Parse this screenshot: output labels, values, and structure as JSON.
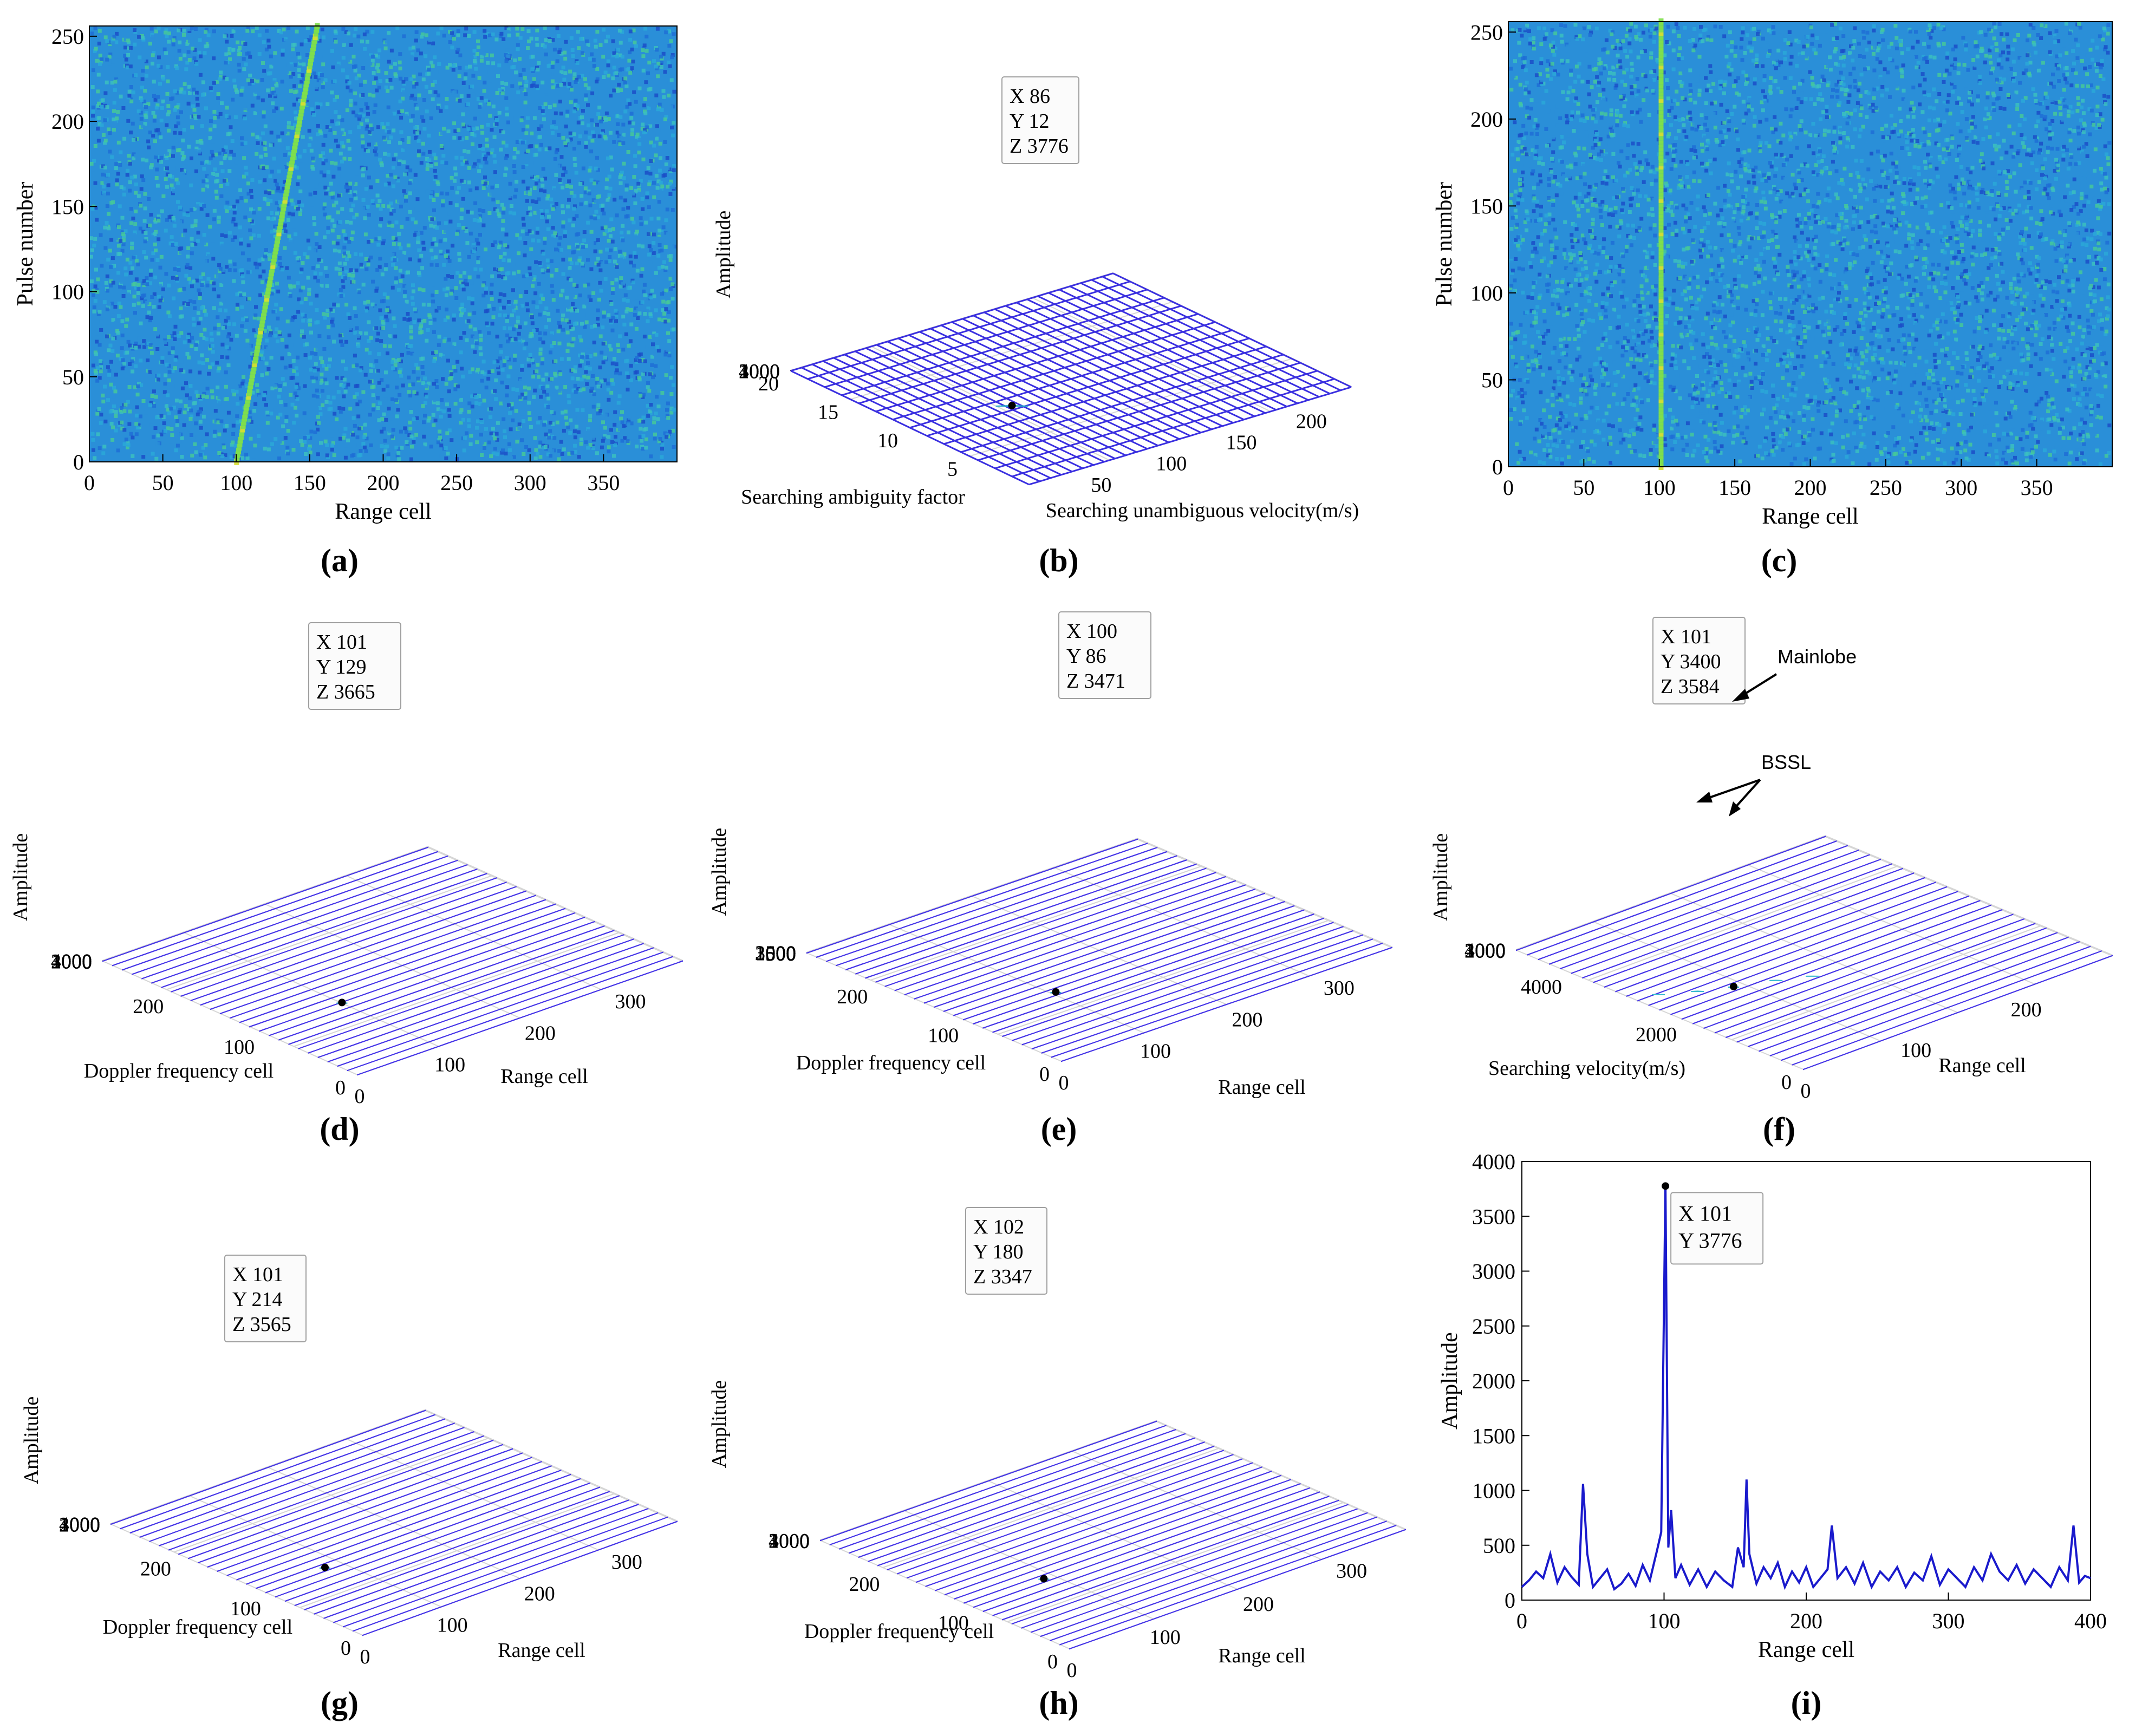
{
  "chart_data": [
    {
      "id": "a",
      "type": "heatmap",
      "caption": "(a)",
      "xlabel": "Range cell",
      "ylabel": "Pulse number",
      "xlim": [
        0,
        400
      ],
      "ylim": [
        0,
        256
      ],
      "xticks": [
        0,
        50,
        100,
        150,
        200,
        250,
        300,
        350
      ],
      "yticks": [
        0,
        50,
        100,
        150,
        200,
        250
      ],
      "target_track": {
        "x_start": 100,
        "x_end": 155,
        "y_start": 0,
        "y_end": 256
      },
      "colors": {
        "bg": "#2a8fd8",
        "track": "#7fe04a"
      }
    },
    {
      "id": "b",
      "type": "surface3d",
      "caption": "(b)",
      "xlabel": "Searching unambiguous velocity(m/s)",
      "ylabel": "Searching ambiguity factor",
      "zlabel": "Amplitude",
      "xticks": [
        50,
        100,
        150,
        200
      ],
      "yticks": [
        5,
        10,
        15,
        20
      ],
      "zticks": [
        1000,
        2000,
        3000,
        4000
      ],
      "zlim": [
        0,
        4000
      ],
      "noise_level": 700,
      "datatip": {
        "x": 86,
        "y": 12,
        "z": 3776,
        "lines": [
          "X 86",
          "Y 12",
          "Z 3776"
        ]
      }
    },
    {
      "id": "c",
      "type": "heatmap",
      "caption": "(c)",
      "xlabel": "Range cell",
      "ylabel": "Pulse number",
      "xlim": [
        0,
        400
      ],
      "ylim": [
        0,
        256
      ],
      "xticks": [
        0,
        50,
        100,
        150,
        200,
        250,
        300,
        350
      ],
      "yticks": [
        0,
        50,
        100,
        150,
        200,
        250
      ],
      "target_track": {
        "x_start": 101,
        "x_end": 101,
        "y_start": 0,
        "y_end": 256
      },
      "colors": {
        "bg": "#2a8fd8",
        "track": "#7fe04a"
      }
    },
    {
      "id": "d",
      "type": "surface3d",
      "caption": "(d)",
      "xlabel": "Range cell",
      "ylabel": "Doppler frequency cell",
      "zlabel": "Amplitude",
      "xticks": [
        0,
        100,
        200,
        300
      ],
      "yticks": [
        0,
        100,
        200
      ],
      "zticks": [
        0,
        1000,
        2000,
        3000,
        4000
      ],
      "zlim": [
        0,
        4000
      ],
      "noise_level": 600,
      "datatip": {
        "x": 101,
        "y": 129,
        "z": 3665,
        "lines": [
          "X 101",
          "Y 129",
          "Z 3665"
        ]
      }
    },
    {
      "id": "e",
      "type": "surface3d",
      "caption": "(e)",
      "xlabel": "Range cell",
      "ylabel": "Doppler frequency cell",
      "zlabel": "Amplitude",
      "xticks": [
        0,
        100,
        200,
        300
      ],
      "yticks": [
        0,
        100,
        200
      ],
      "zticks": [
        0,
        500,
        1000,
        1500,
        2000,
        2500,
        3000,
        3500
      ],
      "zlim": [
        0,
        3500
      ],
      "noise_level": 600,
      "datatip": {
        "x": 100,
        "y": 86,
        "z": 3471,
        "lines": [
          "X 100",
          "Y 86",
          "Z 3471"
        ]
      }
    },
    {
      "id": "f",
      "type": "surface3d",
      "caption": "(f)",
      "xlabel": "Range cell",
      "ylabel": "Searching velocity(m/s)",
      "zlabel": "Amplitude",
      "xticks": [
        0,
        100,
        200
      ],
      "yticks": [
        0,
        2000,
        4000
      ],
      "zticks": [
        0,
        1000,
        2000,
        3000,
        4000
      ],
      "zlim": [
        0,
        4000
      ],
      "noise_level": 600,
      "datatip": {
        "x": 101,
        "y": 3400,
        "z": 3584,
        "lines": [
          "X 101",
          "Y 3400",
          "Z 3584"
        ]
      },
      "annotations": [
        "Mainlobe",
        "BSSL"
      ]
    },
    {
      "id": "g",
      "type": "surface3d",
      "caption": "(g)",
      "xlabel": "Range cell",
      "ylabel": "Doppler frequency cell",
      "zlabel": "Amplitude",
      "xticks": [
        0,
        100,
        200,
        300
      ],
      "yticks": [
        0,
        100,
        200
      ],
      "zticks": [
        0,
        1000,
        2000,
        3000,
        4000
      ],
      "zlim": [
        0,
        4000
      ],
      "noise_level": 600,
      "datatip": {
        "x": 101,
        "y": 214,
        "z": 3565,
        "lines": [
          "X 101",
          "Y 214",
          "Z 3565"
        ]
      }
    },
    {
      "id": "h",
      "type": "surface3d",
      "caption": "(h)",
      "xlabel": "Range cell",
      "ylabel": "Doppler frequency cell",
      "zlabel": "Amplitude",
      "xticks": [
        0,
        100,
        200,
        300
      ],
      "yticks": [
        0,
        100,
        200
      ],
      "zticks": [
        0,
        1000,
        2000,
        3000,
        4000
      ],
      "zlim": [
        0,
        4000
      ],
      "noise_level": 600,
      "datatip": {
        "x": 102,
        "y": 180,
        "z": 3347,
        "lines": [
          "X 102",
          "Y 180",
          "Z 3347"
        ]
      }
    },
    {
      "id": "i",
      "type": "line",
      "caption": "(i)",
      "xlabel": "Range cell",
      "ylabel": "Amplitude",
      "xlim": [
        0,
        400
      ],
      "ylim": [
        0,
        4000
      ],
      "xticks": [
        0,
        100,
        200,
        300,
        400
      ],
      "yticks": [
        0,
        500,
        1000,
        1500,
        2000,
        2500,
        3000,
        3500,
        4000
      ],
      "series": [
        {
          "color": "#1a1acc",
          "x": [
            0,
            5,
            10,
            15,
            20,
            25,
            30,
            35,
            40,
            43,
            46,
            50,
            55,
            60,
            65,
            70,
            75,
            80,
            85,
            90,
            95,
            98,
            101,
            103,
            105,
            108,
            112,
            118,
            124,
            130,
            136,
            142,
            148,
            152,
            156,
            158,
            160,
            165,
            170,
            175,
            180,
            185,
            190,
            195,
            200,
            205,
            210,
            215,
            218,
            222,
            228,
            234,
            240,
            246,
            252,
            258,
            264,
            270,
            276,
            282,
            288,
            294,
            300,
            306,
            312,
            318,
            324,
            330,
            336,
            342,
            348,
            354,
            360,
            366,
            372,
            378,
            384,
            388,
            392,
            396,
            400
          ],
          "y": [
            120,
            180,
            260,
            200,
            420,
            160,
            300,
            210,
            140,
            1060,
            420,
            120,
            200,
            280,
            100,
            150,
            240,
            130,
            320,
            180,
            450,
            620,
            3776,
            480,
            820,
            200,
            320,
            140,
            280,
            120,
            260,
            180,
            120,
            480,
            300,
            1100,
            420,
            150,
            300,
            200,
            340,
            120,
            260,
            160,
            300,
            120,
            200,
            280,
            680,
            200,
            300,
            150,
            340,
            120,
            260,
            180,
            300,
            120,
            250,
            180,
            400,
            140,
            280,
            200,
            120,
            300,
            180,
            420,
            260,
            180,
            320,
            150,
            280,
            200,
            120,
            300,
            180,
            680,
            160,
            220,
            200
          ]
        }
      ],
      "datatip": {
        "x": 101,
        "y": 3776,
        "lines": [
          "X 101",
          "Y 3776"
        ]
      }
    }
  ]
}
